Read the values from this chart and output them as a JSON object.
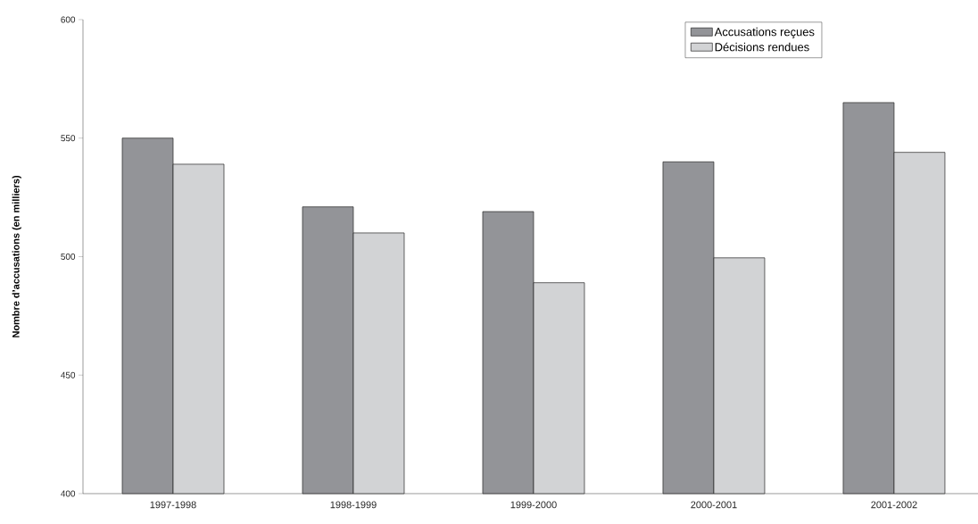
{
  "chart_data": {
    "type": "bar",
    "ylabel": "Nombre d’accusations (en milliers)",
    "categories": [
      "1997-1998",
      "1998-1999",
      "1999-2000",
      "2000-2001",
      "2001-2002"
    ],
    "series": [
      {
        "name": "Accusations reçues",
        "color": "#939498",
        "values": [
          550,
          521,
          519,
          540,
          565
        ]
      },
      {
        "name": "Décisions rendues",
        "color": "#d2d3d5",
        "values": [
          539,
          510,
          489,
          499.5,
          544
        ]
      }
    ],
    "ylim": [
      400,
      600
    ],
    "yticks": [
      400,
      450,
      500,
      550,
      600
    ],
    "grid": false,
    "legend": "top right"
  }
}
